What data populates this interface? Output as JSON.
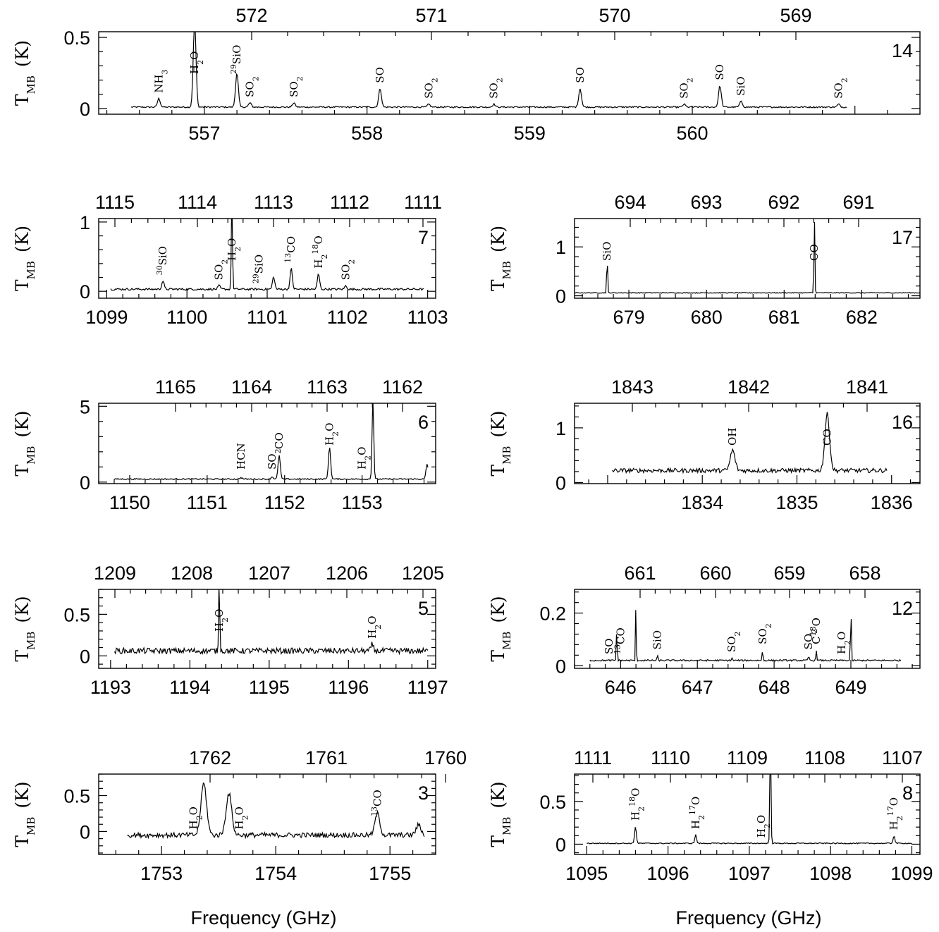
{
  "figure": {
    "x_axis_label": "Frequency (GHz)",
    "y_axis_label_main": "T",
    "y_axis_label_sub": "MB",
    "y_axis_label_unit": "(K)"
  },
  "chart_data": [
    {
      "type": "line",
      "panel": "14",
      "xlim": [
        556.35,
        561.4
      ],
      "ylim": [
        -0.04,
        0.54
      ],
      "x_ticks": [
        557,
        558,
        559,
        560
      ],
      "top_ticks": [
        572,
        571,
        570,
        569
      ],
      "y_ticks": [
        0,
        0.5
      ],
      "top_ticks_positions_in_data": [
        557.2,
        558.1,
        559.3,
        560.2
      ],
      "baseline": 0.01,
      "noise": 0.005,
      "x_start": 556.55,
      "x_end": 560.95,
      "peaks": [
        [
          556.72,
          0.06,
          0.012
        ],
        [
          556.94,
          0.6,
          0.012
        ],
        [
          557.2,
          0.24,
          0.012
        ],
        [
          557.28,
          0.03,
          0.012
        ],
        [
          557.55,
          0.03,
          0.012
        ],
        [
          558.08,
          0.13,
          0.012
        ],
        [
          558.38,
          0.02,
          0.012
        ],
        [
          558.78,
          0.02,
          0.012
        ],
        [
          559.31,
          0.13,
          0.012
        ],
        [
          559.95,
          0.02,
          0.012
        ],
        [
          560.17,
          0.15,
          0.012
        ],
        [
          560.3,
          0.04,
          0.012
        ],
        [
          560.9,
          0.02,
          0.012
        ]
      ],
      "lines": [
        {
          "x": 556.72,
          "label": "NH3"
        },
        {
          "x": 556.94,
          "label": "H2O"
        },
        {
          "x": 557.2,
          "label": "29SiO"
        },
        {
          "x": 557.28,
          "label": "SO2"
        },
        {
          "x": 557.55,
          "label": "SO2"
        },
        {
          "x": 558.08,
          "label": "SO"
        },
        {
          "x": 558.38,
          "label": "SO2"
        },
        {
          "x": 558.78,
          "label": "SO2"
        },
        {
          "x": 559.31,
          "label": "SO"
        },
        {
          "x": 559.95,
          "label": "SO2"
        },
        {
          "x": 560.17,
          "label": "SO"
        },
        {
          "x": 560.3,
          "label": "SiO"
        },
        {
          "x": 560.9,
          "label": "SO2"
        }
      ]
    },
    {
      "type": "line",
      "panel": "7",
      "xlim": [
        1098.9,
        1103.1
      ],
      "ylim": [
        -0.1,
        1.05
      ],
      "x_ticks": [
        1099,
        1100,
        1101,
        1102,
        1103
      ],
      "top_ticks": [
        1115,
        1114,
        1113,
        1112,
        1111
      ],
      "y_ticks": [
        0,
        1
      ],
      "baseline": 0.03,
      "noise": 0.015,
      "x_start": 1099.05,
      "x_end": 1102.95,
      "peaks": [
        [
          1099.7,
          0.12,
          0.02
        ],
        [
          1100.4,
          0.05,
          0.02
        ],
        [
          1100.56,
          1.4,
          0.01
        ],
        [
          1101.08,
          0.18,
          0.02
        ],
        [
          1101.3,
          0.3,
          0.02
        ],
        [
          1101.64,
          0.22,
          0.02
        ],
        [
          1101.98,
          0.05,
          0.02
        ]
      ],
      "lines": [
        {
          "x": 1099.7,
          "label": "30SiO"
        },
        {
          "x": 1100.4,
          "label": "SO2"
        },
        {
          "x": 1100.56,
          "label": "H2O"
        },
        {
          "x": 1100.9,
          "label": "29SiO"
        },
        {
          "x": 1101.3,
          "label": "13CO"
        },
        {
          "x": 1101.64,
          "label": "H218O"
        },
        {
          "x": 1101.98,
          "label": "SO2"
        }
      ]
    },
    {
      "type": "line",
      "panel": "17",
      "xlim": [
        678.3,
        682.75
      ],
      "ylim": [
        -0.05,
        1.58
      ],
      "x_ticks": [
        679,
        680,
        681,
        682
      ],
      "top_ticks": [
        694,
        693,
        692,
        691
      ],
      "y_ticks": [
        0,
        1
      ],
      "baseline": 0.06,
      "noise": 0.008,
      "x_start": 678.3,
      "x_end": 682.75,
      "peaks": [
        [
          678.72,
          0.8,
          0.008
        ],
        [
          681.39,
          1.6,
          0.008
        ]
      ],
      "lines": [
        {
          "x": 678.72,
          "label": "SiO"
        },
        {
          "x": 681.39,
          "label": "CO"
        }
      ]
    },
    {
      "type": "line",
      "panel": "6",
      "xlim": [
        1149.6,
        1153.95
      ],
      "ylim": [
        -0.1,
        5.2
      ],
      "x_ticks": [
        1150,
        1151,
        1152,
        1153
      ],
      "top_ticks": [
        1165,
        1164,
        1163,
        1162
      ],
      "y_ticks": [
        0,
        5
      ],
      "baseline": 0.2,
      "noise": 0.04,
      "x_start": 1149.8,
      "x_end": 1153.85,
      "peaks": [
        [
          1151.44,
          0.1,
          0.02
        ],
        [
          1151.84,
          0.15,
          0.02
        ],
        [
          1151.93,
          1.6,
          0.02
        ],
        [
          1152.58,
          2.1,
          0.02
        ],
        [
          1153.14,
          5.4,
          0.015
        ],
        [
          1153.84,
          1.0,
          0.02
        ]
      ],
      "lines": [
        {
          "x": 1151.44,
          "label": "HCN"
        },
        {
          "x": 1151.84,
          "label": "SO2"
        },
        {
          "x": 1151.93,
          "label": "CO"
        },
        {
          "x": 1152.58,
          "label": "H2O"
        },
        {
          "x": 1153.0,
          "label": "H2O"
        }
      ]
    },
    {
      "type": "line",
      "panel": "16",
      "xlim": [
        1832.65,
        1836.3
      ],
      "ylim": [
        -0.02,
        1.45
      ],
      "x_ticks": [
        1834,
        1835,
        1836
      ],
      "top_ticks": [
        1843,
        1842,
        1841
      ],
      "y_ticks": [
        0,
        1
      ],
      "baseline": 0.22,
      "noise": 0.04,
      "x_start": 1833.05,
      "x_end": 1835.95,
      "peaks": [
        [
          1834.32,
          0.37,
          0.035
        ],
        [
          1835.32,
          1.03,
          0.035
        ]
      ],
      "lines": [
        {
          "x": 1834.32,
          "label": "OH"
        },
        {
          "x": 1835.32,
          "label": "CO"
        }
      ]
    },
    {
      "type": "line",
      "panel": "5",
      "xlim": [
        1192.85,
        1197.1
      ],
      "ylim": [
        -0.15,
        0.8
      ],
      "x_ticks": [
        1193,
        1194,
        1195,
        1196,
        1197
      ],
      "top_ticks": [
        1209,
        1208,
        1207,
        1206,
        1205
      ],
      "y_ticks": [
        0,
        0.5
      ],
      "baseline": 0.06,
      "noise": 0.035,
      "x_start": 1193.05,
      "x_end": 1197.0,
      "peaks": [
        [
          1194.37,
          0.85,
          0.01
        ],
        [
          1196.3,
          0.08,
          0.02
        ]
      ],
      "lines": [
        {
          "x": 1194.37,
          "label": "H2O"
        },
        {
          "x": 1196.3,
          "label": "H2O"
        }
      ]
    },
    {
      "type": "line",
      "panel": "12",
      "xlim": [
        645.4,
        649.9
      ],
      "ylim": [
        -0.01,
        0.29
      ],
      "x_ticks": [
        646,
        647,
        648,
        649
      ],
      "top_ticks": [
        661,
        660,
        659,
        658
      ],
      "y_ticks": [
        0,
        0.2
      ],
      "baseline": 0.02,
      "noise": 0.003,
      "x_start": 645.6,
      "x_end": 649.65,
      "peaks": [
        [
          645.95,
          0.12,
          0.008
        ],
        [
          646.2,
          0.23,
          0.006
        ],
        [
          646.48,
          0.02,
          0.008
        ],
        [
          647.45,
          0.01,
          0.008
        ],
        [
          647.85,
          0.04,
          0.008
        ],
        [
          648.45,
          0.02,
          0.008
        ],
        [
          648.55,
          0.04,
          0.008
        ],
        [
          649.0,
          0.3,
          0.006
        ]
      ],
      "lines": [
        {
          "x": 645.85,
          "label": "SO"
        },
        {
          "x": 646.0,
          "label": "13CO"
        },
        {
          "x": 646.48,
          "label": "SiO"
        },
        {
          "x": 647.45,
          "label": "SO2"
        },
        {
          "x": 647.85,
          "label": "SO2"
        },
        {
          "x": 648.45,
          "label": "SO2"
        },
        {
          "x": 648.55,
          "label": "C18O"
        },
        {
          "x": 648.88,
          "label": "H2O"
        }
      ]
    },
    {
      "type": "line",
      "panel": "3",
      "xlim": [
        1752.45,
        1755.4
      ],
      "ylim": [
        -0.32,
        0.8
      ],
      "x_ticks": [
        1753,
        1754,
        1755
      ],
      "top_ticks": [
        1762,
        1761,
        1760
      ],
      "y_ticks": [
        0,
        0.5
      ],
      "baseline": -0.05,
      "noise": 0.035,
      "x_start": 1752.7,
      "x_end": 1755.3,
      "peaks": [
        [
          1753.37,
          0.72,
          0.035
        ],
        [
          1753.59,
          0.58,
          0.035
        ],
        [
          1754.89,
          0.3,
          0.03
        ],
        [
          1755.25,
          0.14,
          0.03
        ]
      ],
      "lines": [
        {
          "x": 1753.28,
          "label": "H2O"
        },
        {
          "x": 1753.68,
          "label": "H2O"
        },
        {
          "x": 1754.89,
          "label": "13CO"
        }
      ]
    },
    {
      "type": "line",
      "panel": "8",
      "xlim": [
        1094.85,
        1099.1
      ],
      "ylim": [
        -0.12,
        0.82
      ],
      "x_ticks": [
        1095,
        1096,
        1097,
        1098,
        1099
      ],
      "top_ticks": [
        1111,
        1110,
        1109,
        1108,
        1107
      ],
      "y_ticks": [
        0,
        0.5
      ],
      "baseline": 0.01,
      "noise": 0.006,
      "x_start": 1095.0,
      "x_end": 1099.0,
      "peaks": [
        [
          1095.6,
          0.2,
          0.015
        ],
        [
          1096.34,
          0.1,
          0.015
        ],
        [
          1097.26,
          1.2,
          0.01
        ],
        [
          1098.78,
          0.09,
          0.015
        ]
      ],
      "lines": [
        {
          "x": 1095.6,
          "label": "H218O"
        },
        {
          "x": 1096.34,
          "label": "H217O"
        },
        {
          "x": 1097.15,
          "label": "H2O"
        },
        {
          "x": 1098.78,
          "label": "H217O"
        }
      ]
    }
  ]
}
